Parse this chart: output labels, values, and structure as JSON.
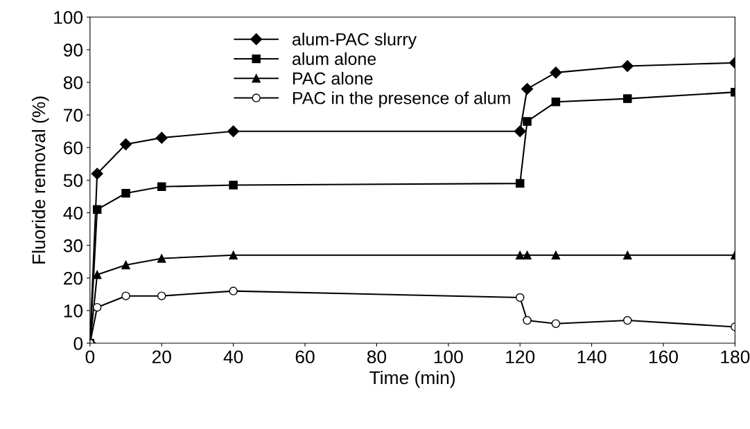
{
  "chart_data": {
    "type": "line",
    "xlabel": "Time (min)",
    "ylabel": "Fluoride removal (%)",
    "xlim": [
      0,
      180
    ],
    "xticks": [
      0,
      20,
      40,
      60,
      80,
      100,
      120,
      140,
      160,
      180
    ],
    "ylim": [
      0,
      100
    ],
    "yticks": [
      0,
      10,
      20,
      30,
      40,
      50,
      60,
      70,
      80,
      90,
      100
    ],
    "grid": false,
    "legend": "top left",
    "x": [
      0,
      2,
      10,
      20,
      40,
      120,
      122,
      130,
      150,
      180
    ],
    "series": [
      {
        "name": "alum-PAC slurry",
        "color": "#000000",
        "marker": "diamond",
        "values": [
          0,
          52,
          61,
          63,
          65,
          65,
          78,
          83,
          85,
          86
        ]
      },
      {
        "name": "alum alone",
        "color": "#000000",
        "marker": "square",
        "values": [
          0,
          41,
          46,
          48,
          48.5,
          49,
          68,
          74,
          75,
          77
        ]
      },
      {
        "name": "PAC alone",
        "color": "#000000",
        "marker": "triangle",
        "values": [
          0,
          21,
          24,
          26,
          27,
          27,
          27,
          27,
          27,
          27
        ]
      },
      {
        "name": "PAC in the presence of alum",
        "color": "#000000",
        "marker": "open circle",
        "values": [
          0,
          11,
          14.5,
          14.5,
          16,
          14,
          7,
          6,
          7,
          5
        ]
      }
    ]
  }
}
